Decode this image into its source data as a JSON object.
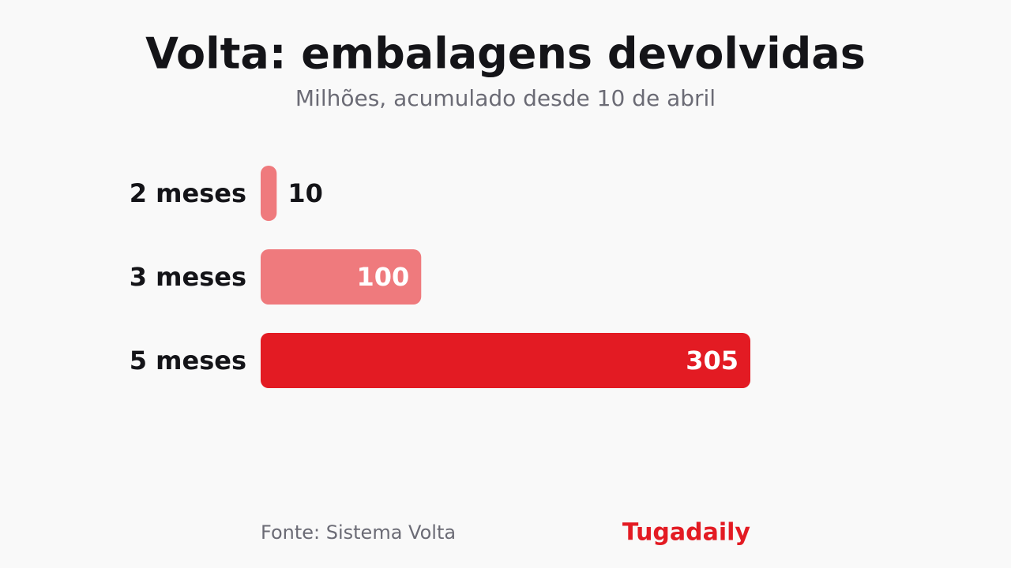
{
  "chart_data": {
    "type": "hbar",
    "title": "Volta: embalagens devolvidas",
    "subtitle": "Milhões, acumulado desde 10 de abril",
    "categories": [
      "2 meses",
      "3 meses",
      "5 meses"
    ],
    "values": [
      10,
      100,
      305
    ],
    "colors": [
      "#ef7a7d",
      "#ef7a7d",
      "#e31b23"
    ],
    "source": "Fonte: Sistema Volta",
    "brand": "Tugadaily",
    "brand_color": "#e31b23"
  }
}
